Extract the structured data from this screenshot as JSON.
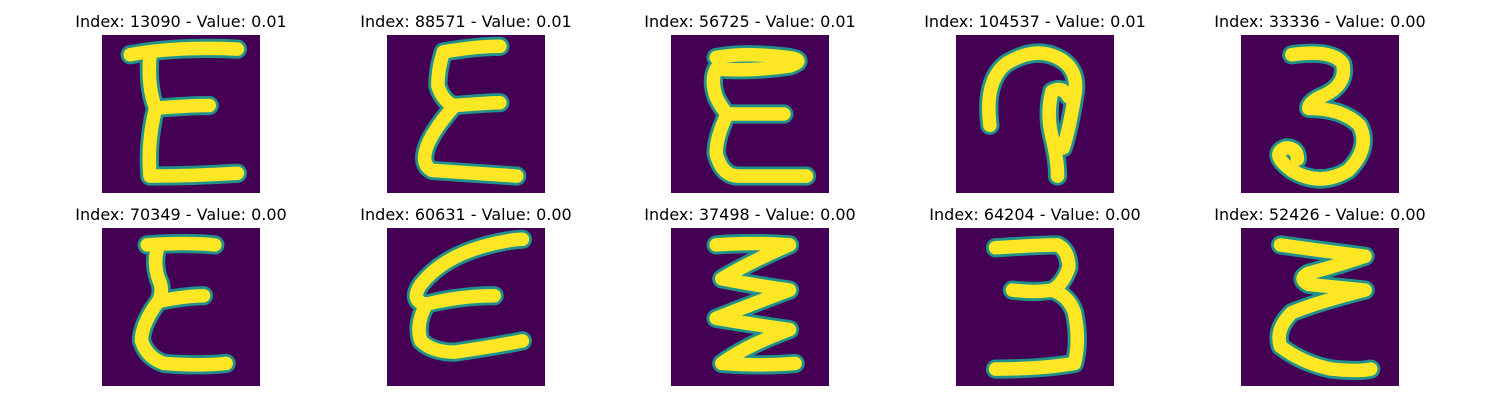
{
  "colors": {
    "background": "#440154",
    "stroke_edge": "#21918c",
    "stroke_core": "#fde725",
    "title_text": "#000000"
  },
  "images": [
    {
      "title": "Index: 13090 - Value: 0.01",
      "depicts": "digit-3-mirrored",
      "shape": "e-upright"
    },
    {
      "title": "Index: 88571 - Value: 0.01",
      "depicts": "digit-3-mirrored",
      "shape": "e-zigzag"
    },
    {
      "title": "Index: 56725 - Value: 0.01",
      "depicts": "digit-3-mirrored",
      "shape": "e-round-top"
    },
    {
      "title": "Index: 104537 - Value: 0.01",
      "depicts": "digit-hook",
      "shape": "hook"
    },
    {
      "title": "Index: 33336 - Value: 0.00",
      "depicts": "digit-3",
      "shape": "three-curly"
    },
    {
      "title": "Index: 70349 - Value: 0.00",
      "depicts": "digit-3-mirrored",
      "shape": "e-narrow"
    },
    {
      "title": "Index: 60631 - Value: 0.00",
      "depicts": "digit-3-mirrored",
      "shape": "e-slanted"
    },
    {
      "title": "Index: 37498 - Value: 0.00",
      "depicts": "digit-3-mirrored",
      "shape": "w-zigzag"
    },
    {
      "title": "Index: 64204 - Value: 0.00",
      "depicts": "digit-3",
      "shape": "three-blocky"
    },
    {
      "title": "Index: 52426 - Value: 0.00",
      "depicts": "digit-3-mirrored",
      "shape": "sideways-w"
    }
  ]
}
